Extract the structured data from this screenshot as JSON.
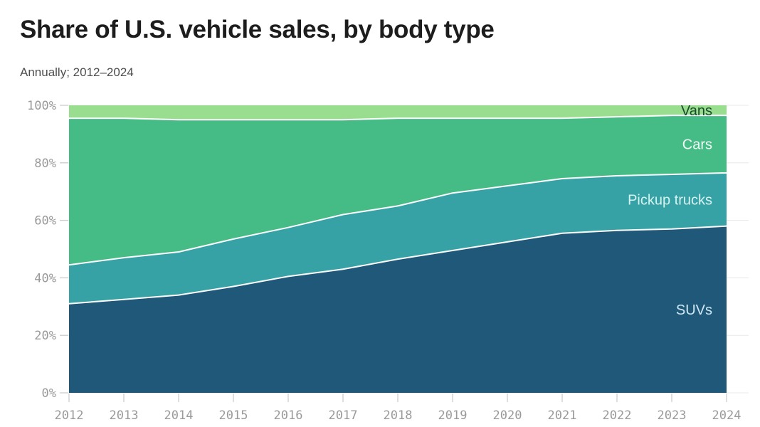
{
  "header": {
    "title": "Share of U.S. vehicle sales, by body type",
    "subtitle": "Annually; 2012–2024"
  },
  "chart_data": {
    "type": "area",
    "stacked": true,
    "unit": "percent",
    "title": "Share of U.S. vehicle sales, by body type",
    "subtitle": "Annually; 2012–2024",
    "x": [
      2012,
      2013,
      2014,
      2015,
      2016,
      2017,
      2018,
      2019,
      2020,
      2021,
      2022,
      2023,
      2024
    ],
    "series": [
      {
        "name": "SUVs",
        "color": "#20587a",
        "label_color": "#cfe8f5",
        "values": [
          31,
          32.5,
          34,
          37,
          40.5,
          43,
          46.5,
          49.5,
          52.5,
          55.5,
          56.5,
          57,
          58
        ]
      },
      {
        "name": "Pickup trucks",
        "color": "#36a2a5",
        "label_color": "#d8f2ef",
        "values": [
          13.5,
          14.5,
          15,
          16.5,
          17,
          19,
          18.5,
          20,
          19.5,
          19,
          19,
          19,
          18.5
        ]
      },
      {
        "name": "Cars",
        "color": "#45bb86",
        "label_color": "#f2fcf6",
        "values": [
          51,
          48.5,
          46,
          41.5,
          37.5,
          33,
          30.5,
          26,
          23.5,
          21,
          20.5,
          20.5,
          20
        ]
      },
      {
        "name": "Vans",
        "color": "#99de8f",
        "label_color": "#1a4a2e",
        "values": [
          4.5,
          4.5,
          5,
          5,
          5,
          5,
          4.5,
          4.5,
          4.5,
          4.5,
          4,
          3.5,
          3.5
        ]
      }
    ],
    "ylim": [
      0,
      100
    ],
    "yticks": [
      0,
      20,
      40,
      60,
      80,
      100
    ],
    "ytick_labels": [
      "0%",
      "20%",
      "40%",
      "60%",
      "80%",
      "100%"
    ],
    "xtick_labels": [
      "2012",
      "2013",
      "2014",
      "2015",
      "2016",
      "2017",
      "2018",
      "2019",
      "2020",
      "2021",
      "2022",
      "2023",
      "2024"
    ],
    "grid": true,
    "boundary_stroke": "#ffffff",
    "grid_color": "#e8e8e8",
    "tick_color": "#cccccc",
    "axis_text_color": "#9a9a9a",
    "legend_position": "inline-right"
  }
}
